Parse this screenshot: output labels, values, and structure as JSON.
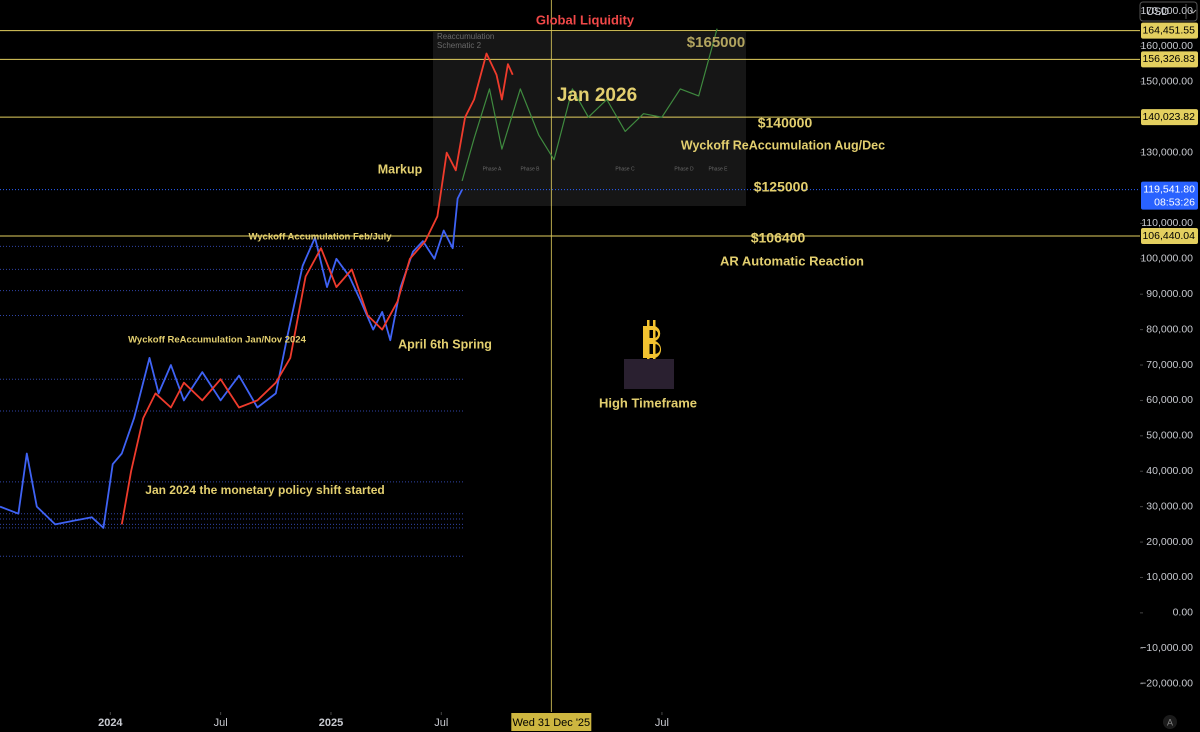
{
  "chart_data": {
    "type": "line",
    "title": "Global Liquidity",
    "currency": "USD",
    "auto_button": "A",
    "xlim": [
      "2023-07-01",
      "2028-09-01"
    ],
    "ylim": [
      -28000,
      173100
    ],
    "xticks": [
      {
        "value": "2024-01-01",
        "label": "2024"
      },
      {
        "value": "2024-07-01",
        "label": "Jul"
      },
      {
        "value": "2025-01-01",
        "label": "2025"
      },
      {
        "value": "2025-07-01",
        "label": "Jul"
      },
      {
        "value": "2026-07-01",
        "label": "Jul"
      }
    ],
    "yticks": [
      {
        "value": 170000,
        "label": "170,000.00"
      },
      {
        "value": 160000,
        "label": "160,000.00"
      },
      {
        "value": 150000,
        "label": "150,000.00"
      },
      {
        "value": 130000,
        "label": "130,000.00"
      },
      {
        "value": 110000,
        "label": "110,000.00"
      },
      {
        "value": 100000,
        "label": "100,000.00"
      },
      {
        "value": 90000,
        "label": "90,000.00"
      },
      {
        "value": 80000,
        "label": "80,000.00"
      },
      {
        "value": 70000,
        "label": "70,000.00"
      },
      {
        "value": 60000,
        "label": "60,000.00"
      },
      {
        "value": 50000,
        "label": "50,000.00"
      },
      {
        "value": 40000,
        "label": "40,000.00"
      },
      {
        "value": 30000,
        "label": "30,000.00"
      },
      {
        "value": 20000,
        "label": "20,000.00"
      },
      {
        "value": 10000,
        "label": "10,000.00"
      },
      {
        "value": 0,
        "label": "0.00"
      },
      {
        "value": -10000,
        "label": "−10,000.00"
      },
      {
        "value": -20000,
        "label": "−20,000.00"
      }
    ],
    "crosshair": {
      "x": "2025-12-31",
      "label": "Wed 31 Dec '25"
    },
    "levels": [
      {
        "value": 164451.55,
        "label": "164,451.55"
      },
      {
        "value": 156326.83,
        "label": "156,326.83"
      },
      {
        "value": 140023.82,
        "label": "140,023.82"
      },
      {
        "value": 106440.04,
        "label": "106,440.04"
      }
    ],
    "level_color": "#e3cf5f",
    "last_price": {
      "value": 119541.8,
      "label": "119,541.80",
      "countdown": "08:53:26",
      "color": "#2962ff"
    },
    "support_levels": [
      103500,
      97000,
      91000,
      84000,
      66000,
      57000,
      37000,
      28000,
      26500,
      25000,
      24000,
      16000
    ],
    "series": [
      {
        "color": "#3f63f5",
        "x": [
          "2023-07-01",
          "2023-08-01",
          "2023-08-15",
          "2023-09-01",
          "2023-10-01",
          "2023-11-01",
          "2023-12-01",
          "2023-12-20",
          "2024-01-05",
          "2024-01-20",
          "2024-02-10",
          "2024-03-05",
          "2024-03-20",
          "2024-04-10",
          "2024-05-01",
          "2024-06-01",
          "2024-07-01",
          "2024-08-01",
          "2024-09-01",
          "2024-10-01",
          "2024-10-20",
          "2024-11-15",
          "2024-12-05",
          "2024-12-25",
          "2025-01-10",
          "2025-02-01",
          "2025-02-20",
          "2025-03-10",
          "2025-03-25",
          "2025-04-08",
          "2025-04-25",
          "2025-05-15",
          "2025-06-01",
          "2025-06-20",
          "2025-07-05",
          "2025-07-20",
          "2025-07-28",
          "2025-08-05"
        ],
        "values": [
          30000,
          28000,
          45000,
          30000,
          25000,
          26000,
          27000,
          24000,
          42000,
          45000,
          55000,
          72000,
          62000,
          70000,
          60000,
          68000,
          60000,
          67000,
          58000,
          62000,
          78000,
          98000,
          106000,
          92000,
          100000,
          95000,
          88000,
          80000,
          85000,
          77000,
          92000,
          102000,
          105000,
          100000,
          108000,
          103000,
          117000,
          119541.8
        ]
      },
      {
        "color": "#ef3b2c",
        "x": [
          "2024-01-20",
          "2024-02-05",
          "2024-02-25",
          "2024-03-15",
          "2024-04-10",
          "2024-05-01",
          "2024-06-01",
          "2024-07-01",
          "2024-08-01",
          "2024-09-01",
          "2024-10-01",
          "2024-10-25",
          "2024-11-20",
          "2024-12-15",
          "2025-01-10",
          "2025-02-05",
          "2025-03-01",
          "2025-03-25",
          "2025-04-20",
          "2025-05-10",
          "2025-06-05",
          "2025-06-25",
          "2025-07-10",
          "2025-07-25",
          "2025-08-10",
          "2025-08-25",
          "2025-09-15",
          "2025-10-01",
          "2025-10-10",
          "2025-10-20",
          "2025-10-28"
        ],
        "values": [
          25000,
          40000,
          55000,
          62000,
          58000,
          65000,
          60000,
          66000,
          58000,
          60000,
          65000,
          72000,
          95000,
          103000,
          92000,
          97000,
          84000,
          80000,
          88000,
          100000,
          105000,
          112000,
          130000,
          125000,
          140000,
          145000,
          158000,
          152000,
          145000,
          155000,
          152000
        ]
      },
      {
        "color": "#3f8a3f",
        "x": [
          "2025-08-05",
          "2025-08-25",
          "2025-09-20",
          "2025-10-10",
          "2025-11-10",
          "2025-12-10",
          "2026-01-05",
          "2026-02-05",
          "2026-03-01",
          "2026-04-01",
          "2026-05-01",
          "2026-06-01",
          "2026-07-01",
          "2026-08-01",
          "2026-09-01",
          "2026-10-01"
        ],
        "values": [
          122000,
          134000,
          148000,
          131000,
          148000,
          135000,
          128000,
          148000,
          140000,
          145000,
          136000,
          141000,
          140000,
          148000,
          146000,
          165000
        ]
      }
    ],
    "annotations": [
      "Reaccumulation",
      "Schematic 2",
      "$165000",
      "Jan 2026",
      "$140000",
      "Wyckoff ReAccumulation Aug/Dec",
      "Markup",
      "$125000",
      "Wyckoff Accumulation Feb/July",
      "$106400",
      "AR Automatic Reaction",
      "Wyckoff ReAccumulation Jan/Nov 2024",
      "April 6th Spring",
      "High Timeframe",
      "Jan 2024 the monetary policy shift started",
      "Phase A",
      "Phase B",
      "Phase C",
      "Phase D",
      "Phase E"
    ]
  }
}
